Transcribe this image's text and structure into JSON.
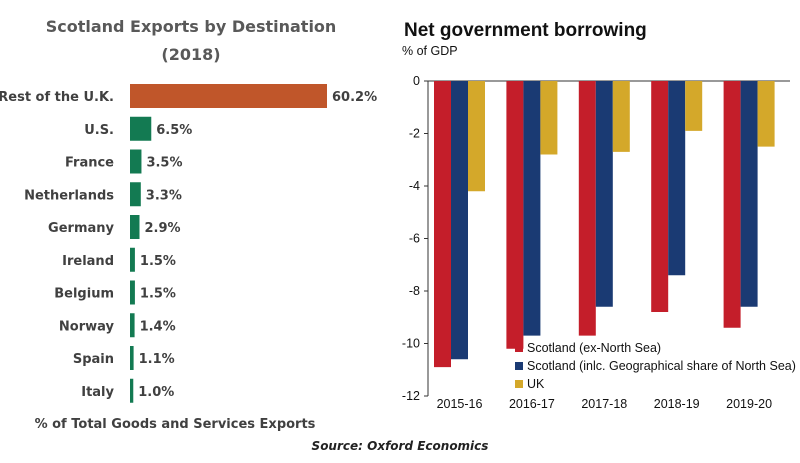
{
  "source": "Source: Oxford Economics",
  "chart_data": [
    {
      "type": "bar",
      "orientation": "horizontal",
      "title": "Scotland Exports by Destination",
      "subtitle": "(2018)",
      "xlabel": "% of Total Goods and Services Exports",
      "categories": [
        "Rest of the U.K.",
        "U.S.",
        "France",
        "Netherlands",
        "Germany",
        "Ireland",
        "Belgium",
        "Norway",
        "Spain",
        "Italy"
      ],
      "values": [
        60.2,
        6.5,
        3.5,
        3.3,
        2.9,
        1.5,
        1.5,
        1.4,
        1.1,
        1.0
      ],
      "value_labels": [
        "60.2%",
        "6.5%",
        "3.5%",
        "3.3%",
        "2.9%",
        "1.5%",
        "1.5%",
        "1.4%",
        "1.1%",
        "1.0%"
      ],
      "colors": [
        "#C0562A",
        "#137A52",
        "#137A52",
        "#137A52",
        "#137A52",
        "#137A52",
        "#137A52",
        "#137A52",
        "#137A52",
        "#137A52"
      ],
      "xlim": [
        0,
        60.2
      ]
    },
    {
      "type": "bar",
      "title": "Net government borrowing",
      "ylabel": "% of GDP",
      "categories": [
        "2015-16",
        "2016-17",
        "2017-18",
        "2018-19",
        "2019-20"
      ],
      "ylim": [
        -12,
        0
      ],
      "yticks": [
        0,
        -2,
        -4,
        -6,
        -8,
        -10,
        -12
      ],
      "legend_position": "bottom-right",
      "series": [
        {
          "name": "Scotland (ex-North Sea)",
          "color": "#C41E2A",
          "values": [
            -10.9,
            -10.2,
            -9.7,
            -8.8,
            -9.4
          ]
        },
        {
          "name": "Scotland (inlc. Geographical share of North Sea)",
          "color": "#1A3A73",
          "values": [
            -10.6,
            -9.7,
            -8.6,
            -7.4,
            -8.6
          ]
        },
        {
          "name": "UK",
          "color": "#D4A82A",
          "values": [
            -4.2,
            -2.8,
            -2.7,
            -1.9,
            -2.5
          ]
        }
      ]
    }
  ]
}
